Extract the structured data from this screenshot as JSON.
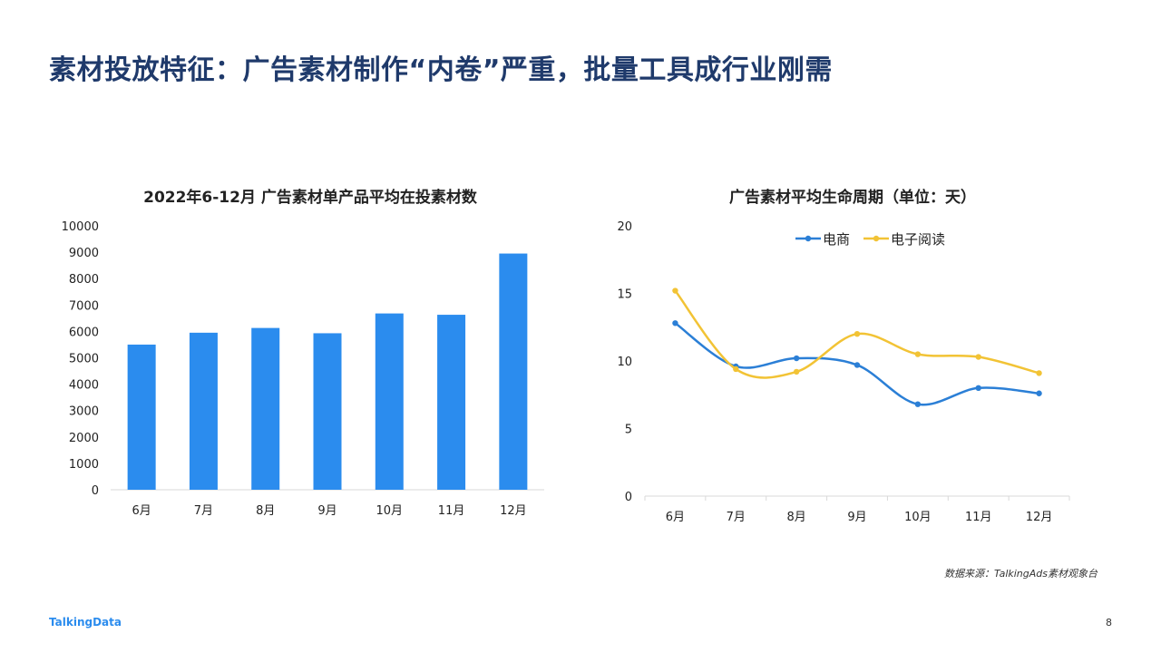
{
  "page": {
    "title": "素材投放特征：广告素材制作“内卷”严重，批量工具成行业刚需",
    "source": "数据来源：TalkingAds素材观象台",
    "logo": "TalkingData",
    "page_number": "8"
  },
  "colors": {
    "title": "#1f3a6b",
    "bar": "#2b8cee",
    "series_ecommerce": "#2b7fd6",
    "series_ebook": "#f2c335"
  },
  "chart_data": [
    {
      "type": "bar",
      "title": "2022年6-12月 广告素材单产品平均在投素材数",
      "categories": [
        "6月",
        "7月",
        "8月",
        "9月",
        "10月",
        "11月",
        "12月"
      ],
      "values": [
        5500,
        5950,
        6130,
        5930,
        6680,
        6630,
        8950
      ],
      "ylim": [
        0,
        10000
      ],
      "yticks": [
        0,
        1000,
        2000,
        3000,
        4000,
        5000,
        6000,
        7000,
        8000,
        9000,
        10000
      ],
      "xlabel": "",
      "ylabel": "",
      "grid": false
    },
    {
      "type": "line",
      "title": "广告素材平均生命周期（单位：天）",
      "categories": [
        "6月",
        "7月",
        "8月",
        "9月",
        "10月",
        "11月",
        "12月"
      ],
      "series": [
        {
          "name": "电商",
          "values": [
            12.8,
            9.6,
            10.2,
            9.7,
            6.8,
            8.0,
            7.6
          ]
        },
        {
          "name": "电子阅读",
          "values": [
            15.2,
            9.4,
            9.2,
            12.0,
            10.5,
            10.3,
            9.1
          ]
        }
      ],
      "ylim": [
        0,
        20
      ],
      "yticks": [
        0,
        5,
        10,
        15,
        20
      ],
      "legend": "top-center",
      "smooth": true,
      "grid": false
    }
  ]
}
